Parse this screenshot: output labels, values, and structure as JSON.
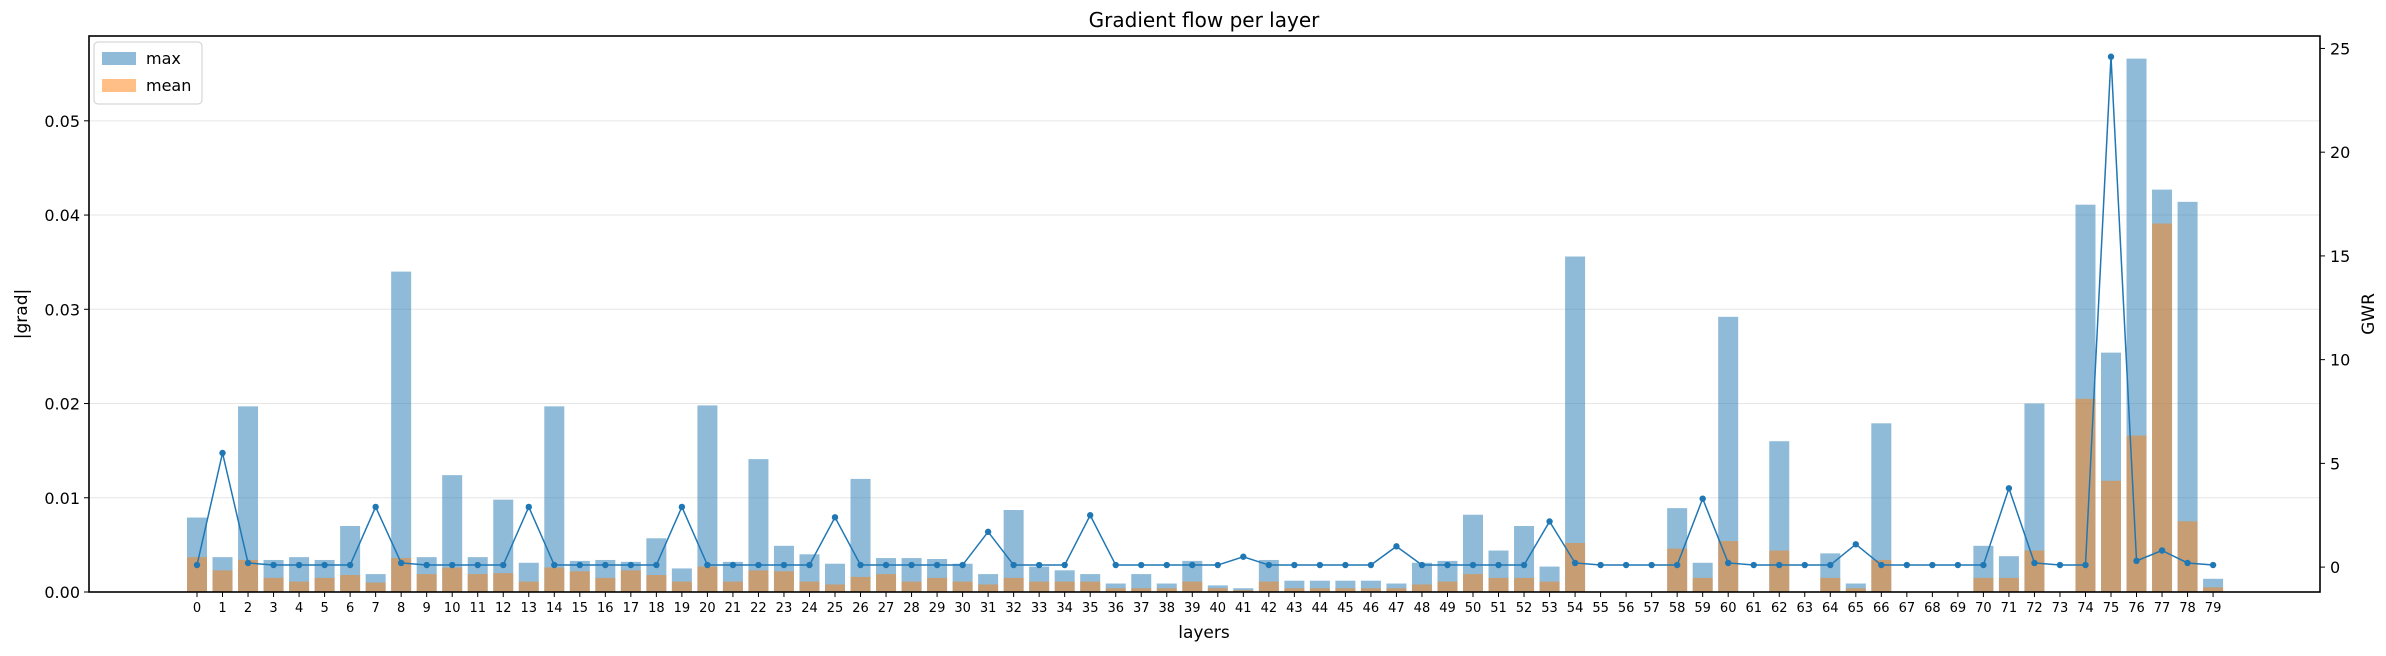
{
  "chart_data": {
    "type": "bar",
    "title": "Gradient flow per layer",
    "xlabel": "layers",
    "ylabel": "|grad|",
    "ylabel_right": "GWR",
    "ylim": [
      0,
      0.059
    ],
    "ylim_right": [
      -1.2,
      25.6
    ],
    "yticks": [
      0.0,
      0.01,
      0.02,
      0.03,
      0.04,
      0.05
    ],
    "ytick_labels": [
      "0.00",
      "0.01",
      "0.02",
      "0.03",
      "0.04",
      "0.05"
    ],
    "yticks_right": [
      0,
      5,
      10,
      15,
      20,
      25
    ],
    "ytick_right_labels": [
      "0",
      "5",
      "10",
      "15",
      "20",
      "25"
    ],
    "grid": "horizontal",
    "legend_position": "top-left",
    "categories": [
      "0",
      "1",
      "2",
      "3",
      "4",
      "5",
      "6",
      "7",
      "8",
      "9",
      "10",
      "11",
      "12",
      "13",
      "14",
      "15",
      "16",
      "17",
      "18",
      "19",
      "20",
      "21",
      "22",
      "23",
      "24",
      "25",
      "26",
      "27",
      "28",
      "29",
      "30",
      "31",
      "32",
      "33",
      "34",
      "35",
      "36",
      "37",
      "38",
      "39",
      "40",
      "41",
      "42",
      "43",
      "44",
      "45",
      "46",
      "47",
      "48",
      "49",
      "50",
      "51",
      "52",
      "53",
      "54",
      "55",
      "56",
      "57",
      "58",
      "59",
      "60",
      "61",
      "62",
      "63",
      "64",
      "65",
      "66",
      "67",
      "68",
      "69",
      "70",
      "71",
      "72",
      "73",
      "74",
      "75",
      "76",
      "77",
      "78",
      "79"
    ],
    "series": [
      {
        "name": "max",
        "kind": "bar",
        "color": "#1f77b4",
        "values": [
          0.0079,
          0.0037,
          0.0197,
          0.0034,
          0.0037,
          0.0034,
          0.007,
          0.0019,
          0.034,
          0.0037,
          0.0124,
          0.0037,
          0.0098,
          0.0031,
          0.0197,
          0.0033,
          0.0034,
          0.0032,
          0.0057,
          0.0025,
          0.0198,
          0.0032,
          0.0141,
          0.0049,
          0.004,
          0.003,
          0.012,
          0.0036,
          0.0036,
          0.0035,
          0.003,
          0.0019,
          0.0087,
          0.0027,
          0.0023,
          0.0019,
          0.0009,
          0.0019,
          0.0009,
          0.0033,
          0.0007,
          0.0004,
          0.0034,
          0.0012,
          0.0012,
          0.0012,
          0.0012,
          0.0009,
          0.0031,
          0.0033,
          0.0082,
          0.0044,
          0.007,
          0.0027,
          0.0356,
          0.0,
          0.0,
          0.0,
          0.0089,
          0.0031,
          0.0292,
          0.0,
          0.016,
          0.0,
          0.0041,
          0.0009,
          0.0179,
          0.0,
          0.0,
          0.0,
          0.0049,
          0.0038,
          0.02,
          0.0,
          0.0411,
          0.0254,
          0.0566,
          0.0427,
          0.0414,
          0.0014
        ]
      },
      {
        "name": "mean",
        "kind": "bar",
        "color": "#ff7f0e",
        "values": [
          0.0037,
          0.0023,
          0.0034,
          0.0015,
          0.0011,
          0.0015,
          0.0018,
          0.001,
          0.0036,
          0.0019,
          0.0026,
          0.0019,
          0.002,
          0.0011,
          0.0026,
          0.0022,
          0.0015,
          0.0023,
          0.0018,
          0.0011,
          0.0027,
          0.0011,
          0.0023,
          0.0022,
          0.0011,
          0.0008,
          0.0016,
          0.0019,
          0.0011,
          0.0015,
          0.0011,
          0.0008,
          0.0015,
          0.0011,
          0.0011,
          0.0011,
          0.0004,
          0.0004,
          0.0004,
          0.0011,
          0.0004,
          0.0002,
          0.0011,
          0.0004,
          0.0004,
          0.0004,
          0.0004,
          0.0004,
          0.0008,
          0.0011,
          0.0019,
          0.0015,
          0.0015,
          0.0011,
          0.0052,
          0.0,
          0.0,
          0.0,
          0.0046,
          0.0015,
          0.0054,
          0.0,
          0.0044,
          0.0,
          0.0015,
          0.0004,
          0.0034,
          0.0,
          0.0,
          0.0,
          0.0015,
          0.0015,
          0.0044,
          0.0,
          0.0205,
          0.0118,
          0.0166,
          0.0391,
          0.0075,
          0.0005
        ]
      },
      {
        "kind": "line",
        "axis": "right",
        "color": "#1f77b4",
        "values": [
          0.1,
          5.5,
          0.2,
          0.1,
          0.1,
          0.1,
          0.1,
          2.9,
          0.2,
          0.1,
          0.1,
          0.1,
          0.1,
          2.9,
          0.1,
          0.1,
          0.1,
          0.1,
          0.1,
          2.9,
          0.1,
          0.1,
          0.1,
          0.1,
          0.1,
          2.4,
          0.1,
          0.1,
          0.1,
          0.1,
          0.1,
          1.7,
          0.1,
          0.1,
          0.1,
          2.5,
          0.1,
          0.1,
          0.1,
          0.1,
          0.1,
          0.5,
          0.1,
          0.1,
          0.1,
          0.1,
          0.1,
          1.0,
          0.1,
          0.1,
          0.1,
          0.1,
          0.1,
          2.2,
          0.2,
          0.1,
          0.1,
          0.1,
          0.1,
          3.3,
          0.2,
          0.1,
          0.1,
          0.1,
          0.1,
          1.1,
          0.1,
          0.1,
          0.1,
          0.1,
          0.1,
          3.8,
          0.2,
          0.1,
          0.1,
          24.6,
          0.3,
          0.8,
          0.2,
          0.1
        ]
      }
    ]
  }
}
